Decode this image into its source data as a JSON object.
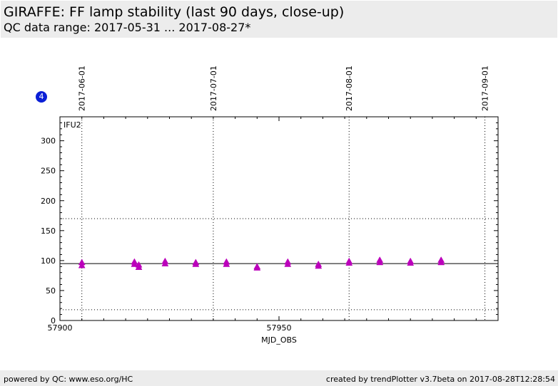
{
  "header": {
    "title": "GIRAFFE: FF lamp stability (last 90 days, close-up)",
    "subtitle": "QC data range: 2017-05-31 ... 2017-08-27*"
  },
  "badge": {
    "label": "4",
    "color": "#0a1fd6"
  },
  "footer": {
    "left": "powered by QC: www.eso.org/HC",
    "right": "created by trendPlotter v3.7beta on 2017-08-28T12:28:54"
  },
  "chart_data": {
    "type": "scatter",
    "panel_label": "IFU2",
    "xlabel": "MJD_OBS",
    "ylabel": "",
    "xlim": [
      57900,
      58000
    ],
    "ylim": [
      0,
      340
    ],
    "x_ticks": [
      57900,
      57950
    ],
    "y_ticks": [
      0,
      50,
      100,
      150,
      200,
      250,
      300
    ],
    "date_ticks": [
      {
        "label": "2017-06-01",
        "x": 57905
      },
      {
        "label": "2017-07-01",
        "x": 57935
      },
      {
        "label": "2017-08-01",
        "x": 57966
      },
      {
        "label": "2017-09-01",
        "x": 57997
      }
    ],
    "reference_line": 95,
    "threshold_lines": [
      18,
      170
    ],
    "marker": "triangle-up",
    "color": "#bb00bb",
    "series": [
      {
        "points": [
          {
            "x": 57905,
            "y": 97
          },
          {
            "x": 57905,
            "y": 92
          },
          {
            "x": 57917,
            "y": 98
          },
          {
            "x": 57917,
            "y": 94
          },
          {
            "x": 57918,
            "y": 93
          },
          {
            "x": 57918,
            "y": 89
          },
          {
            "x": 57924,
            "y": 99
          },
          {
            "x": 57924,
            "y": 95
          },
          {
            "x": 57931,
            "y": 97
          },
          {
            "x": 57931,
            "y": 94
          },
          {
            "x": 57938,
            "y": 98
          },
          {
            "x": 57938,
            "y": 94
          },
          {
            "x": 57945,
            "y": 90
          },
          {
            "x": 57945,
            "y": 88
          },
          {
            "x": 57952,
            "y": 98
          },
          {
            "x": 57952,
            "y": 94
          },
          {
            "x": 57959,
            "y": 94
          },
          {
            "x": 57959,
            "y": 91
          },
          {
            "x": 57966,
            "y": 99
          },
          {
            "x": 57966,
            "y": 96
          },
          {
            "x": 57973,
            "y": 101
          },
          {
            "x": 57973,
            "y": 97
          },
          {
            "x": 57980,
            "y": 99
          },
          {
            "x": 57980,
            "y": 96
          },
          {
            "x": 57987,
            "y": 101
          },
          {
            "x": 57987,
            "y": 97
          }
        ]
      }
    ]
  }
}
